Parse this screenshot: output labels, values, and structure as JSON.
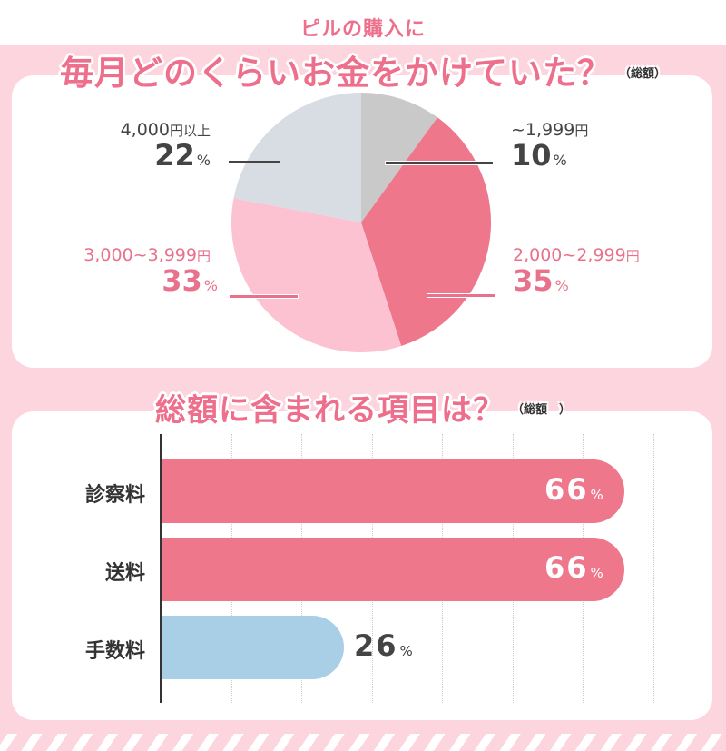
{
  "header": {
    "subtitle": "ピルの購入に",
    "title": "毎月どのくらいお金をかけていた？",
    "title_note": "（総額）"
  },
  "section2": {
    "title": "総額に含まれる項目は？",
    "title_note": "（総額　）"
  },
  "colors": {
    "background_pink": "#fdd5de",
    "accent_pink": "#ee6f8c",
    "slice_gray": "#c9c9c9",
    "slice_dark_pink": "#ee778c",
    "slice_light_pink": "#fcc2d2",
    "slice_blue_gray": "#d7dde2",
    "bar_pink": "#ee778c",
    "bar_blue": "#a9cfe6",
    "text_dark": "#444444"
  },
  "pie_labels": [
    {
      "range": "~1,999",
      "unit": "円",
      "pct": "10",
      "pc": "%"
    },
    {
      "range": "2,000~2,999",
      "unit": "円",
      "pct": "35",
      "pc": "%"
    },
    {
      "range": "3,000~3,999",
      "unit": "円",
      "pct": "33",
      "pc": "%"
    },
    {
      "range": "4,000",
      "unit": "円以上",
      "pct": "22",
      "pc": "%"
    }
  ],
  "bar_labels": [
    {
      "label": "診察料",
      "value": "66",
      "pc": "%"
    },
    {
      "label": "送料",
      "value": "66",
      "pc": "%"
    },
    {
      "label": "手数料",
      "value": "26",
      "pc": "%"
    }
  ],
  "chart_data": [
    {
      "type": "pie",
      "title": "ピルの購入に毎月どのくらいお金をかけていた？（総額）",
      "categories": [
        "~1,999円",
        "2,000~2,999円",
        "3,000~3,999円",
        "4,000円以上"
      ],
      "values": [
        10,
        35,
        33,
        22
      ],
      "unit": "%",
      "colors": [
        "#c9c9c9",
        "#ee778c",
        "#fcc2d2",
        "#d7dde2"
      ],
      "start_angle": "12 o'clock, clockwise"
    },
    {
      "type": "bar",
      "orientation": "horizontal",
      "title": "総額に含まれる項目は？",
      "categories": [
        "診察料",
        "送料",
        "手数料"
      ],
      "values": [
        66,
        66,
        26
      ],
      "unit": "%",
      "xlim": [
        0,
        70
      ],
      "grid": "vertical dotted lines every 10%",
      "colors": [
        "#ee778c",
        "#ee778c",
        "#a9cfe6"
      ]
    }
  ]
}
